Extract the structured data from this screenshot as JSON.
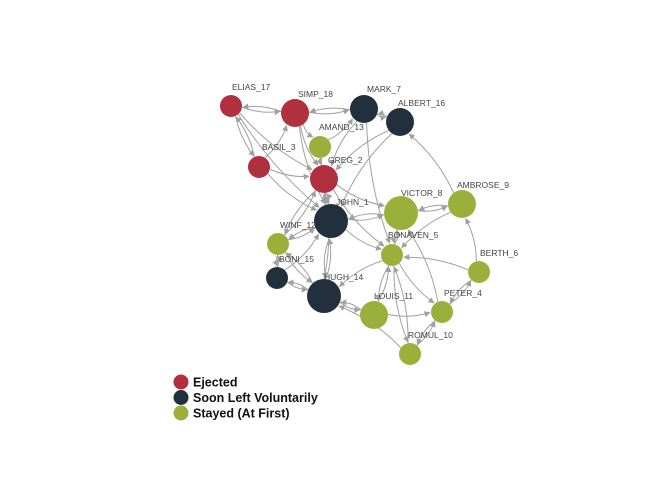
{
  "colors": {
    "ejected": "#B0303E",
    "left": "#222F3D",
    "stayed": "#9BB03B",
    "edge": "#A0A0A0"
  },
  "legend": [
    {
      "label": "Ejected",
      "group": "ejected"
    },
    {
      "label": "Soon Left Voluntarily",
      "group": "left"
    },
    {
      "label": "Stayed (At First)",
      "group": "stayed"
    }
  ],
  "nodes": [
    {
      "id": "ELIAS_17",
      "label": "ELIAS_17",
      "group": "ejected",
      "size": "small"
    },
    {
      "id": "SIMP_18",
      "label": "SIMP_18",
      "group": "ejected",
      "size": "medium"
    },
    {
      "id": "MARK_7",
      "label": "MARK_7",
      "group": "left",
      "size": "medium"
    },
    {
      "id": "ALBERT_16",
      "label": "ALBERT_16",
      "group": "left",
      "size": "medium"
    },
    {
      "id": "AMAND_13",
      "label": "AMAND_13",
      "group": "stayed",
      "size": "small"
    },
    {
      "id": "BASIL_3",
      "label": "BASIL_3",
      "group": "ejected",
      "size": "small"
    },
    {
      "id": "GREG_2",
      "label": "GREG_2",
      "group": "ejected",
      "size": "medium"
    },
    {
      "id": "JOHN_1",
      "label": "JOHN_1",
      "group": "left",
      "size": "large"
    },
    {
      "id": "VICTOR_8",
      "label": "VICTOR_8",
      "group": "stayed",
      "size": "large"
    },
    {
      "id": "AMBROSE_9",
      "label": "AMBROSE_9",
      "group": "stayed",
      "size": "medium"
    },
    {
      "id": "WINF_12",
      "label": "WINF_12",
      "group": "stayed",
      "size": "small"
    },
    {
      "id": "BONAVEN_5",
      "label": "BONAVEN_5",
      "group": "stayed",
      "size": "small"
    },
    {
      "id": "BONI_15",
      "label": "BONI_15",
      "group": "left",
      "size": "small"
    },
    {
      "id": "BERTH_6",
      "label": "BERTH_6",
      "group": "stayed",
      "size": "small"
    },
    {
      "id": "HUGH_14",
      "label": "HUGH_14",
      "group": "left",
      "size": "large"
    },
    {
      "id": "LOUIS_11",
      "label": "LOUIS_11",
      "group": "stayed",
      "size": "medium"
    },
    {
      "id": "PETER_4",
      "label": "PETER_4",
      "group": "stayed",
      "size": "small"
    },
    {
      "id": "ROMUL_10",
      "label": "ROMUL_10",
      "group": "stayed",
      "size": "small"
    }
  ],
  "edges": [
    [
      "ELIAS_17",
      "SIMP_18"
    ],
    [
      "ELIAS_17",
      "BASIL_3"
    ],
    [
      "BASIL_3",
      "ELIAS_17"
    ],
    [
      "ELIAS_17",
      "GREG_2"
    ],
    [
      "ELIAS_17",
      "JOHN_1"
    ],
    [
      "SIMP_18",
      "MARK_7"
    ],
    [
      "SIMP_18",
      "ELIAS_17"
    ],
    [
      "SIMP_18",
      "GREG_2"
    ],
    [
      "SIMP_18",
      "AMAND_13"
    ],
    [
      "SIMP_18",
      "JOHN_1"
    ],
    [
      "MARK_7",
      "ALBERT_16"
    ],
    [
      "ALBERT_16",
      "MARK_7"
    ],
    [
      "MARK_7",
      "SIMP_18"
    ],
    [
      "MARK_7",
      "GREG_2"
    ],
    [
      "MARK_7",
      "BONAVEN_5"
    ],
    [
      "ALBERT_16",
      "JOHN_1"
    ],
    [
      "ALBERT_16",
      "GREG_2"
    ],
    [
      "AMBROSE_9",
      "ALBERT_16"
    ],
    [
      "AMAND_13",
      "MARK_7"
    ],
    [
      "AMAND_13",
      "GREG_2"
    ],
    [
      "AMAND_13",
      "JOHN_1"
    ],
    [
      "BASIL_3",
      "GREG_2"
    ],
    [
      "BASIL_3",
      "JOHN_1"
    ],
    [
      "BASIL_3",
      "SIMP_18"
    ],
    [
      "GREG_2",
      "JOHN_1"
    ],
    [
      "JOHN_1",
      "GREG_2"
    ],
    [
      "GREG_2",
      "VICTOR_8"
    ],
    [
      "GREG_2",
      "BONAVEN_5"
    ],
    [
      "GREG_2",
      "WINF_12"
    ],
    [
      "JOHN_1",
      "VICTOR_8"
    ],
    [
      "VICTOR_8",
      "JOHN_1"
    ],
    [
      "JOHN_1",
      "HUGH_14"
    ],
    [
      "HUGH_14",
      "JOHN_1"
    ],
    [
      "JOHN_1",
      "BONAVEN_5"
    ],
    [
      "JOHN_1",
      "WINF_12"
    ],
    [
      "WINF_12",
      "JOHN_1"
    ],
    [
      "BONI_15",
      "JOHN_1"
    ],
    [
      "VICTOR_8",
      "AMBROSE_9"
    ],
    [
      "AMBROSE_9",
      "VICTOR_8"
    ],
    [
      "VICTOR_8",
      "BONAVEN_5"
    ],
    [
      "BONAVEN_5",
      "VICTOR_8"
    ],
    [
      "AMBROSE_9",
      "BONAVEN_5"
    ],
    [
      "BERTH_6",
      "AMBROSE_9"
    ],
    [
      "BONAVEN_5",
      "LOUIS_11"
    ],
    [
      "LOUIS_11",
      "BONAVEN_5"
    ],
    [
      "BONAVEN_5",
      "PETER_4"
    ],
    [
      "BERTH_6",
      "BONAVEN_5"
    ],
    [
      "BONAVEN_5",
      "HUGH_14"
    ],
    [
      "BONAVEN_5",
      "ROMUL_10"
    ],
    [
      "WINF_12",
      "GREG_2"
    ],
    [
      "WINF_12",
      "HUGH_14"
    ],
    [
      "WINF_12",
      "BONI_15"
    ],
    [
      "BONI_15",
      "WINF_12"
    ],
    [
      "BONI_15",
      "HUGH_14"
    ],
    [
      "HUGH_14",
      "BONI_15"
    ],
    [
      "HUGH_14",
      "WINF_12"
    ],
    [
      "HUGH_14",
      "GREG_2"
    ],
    [
      "HUGH_14",
      "LOUIS_11"
    ],
    [
      "LOUIS_11",
      "HUGH_14"
    ],
    [
      "ROMUL_10",
      "HUGH_14"
    ],
    [
      "PETER_4",
      "BERTH_6"
    ],
    [
      "BERTH_6",
      "PETER_4"
    ],
    [
      "PETER_4",
      "ROMUL_10"
    ],
    [
      "ROMUL_10",
      "PETER_4"
    ],
    [
      "LOUIS_11",
      "PETER_4"
    ],
    [
      "PETER_4",
      "VICTOR_8"
    ],
    [
      "ROMUL_10",
      "BONAVEN_5"
    ]
  ]
}
